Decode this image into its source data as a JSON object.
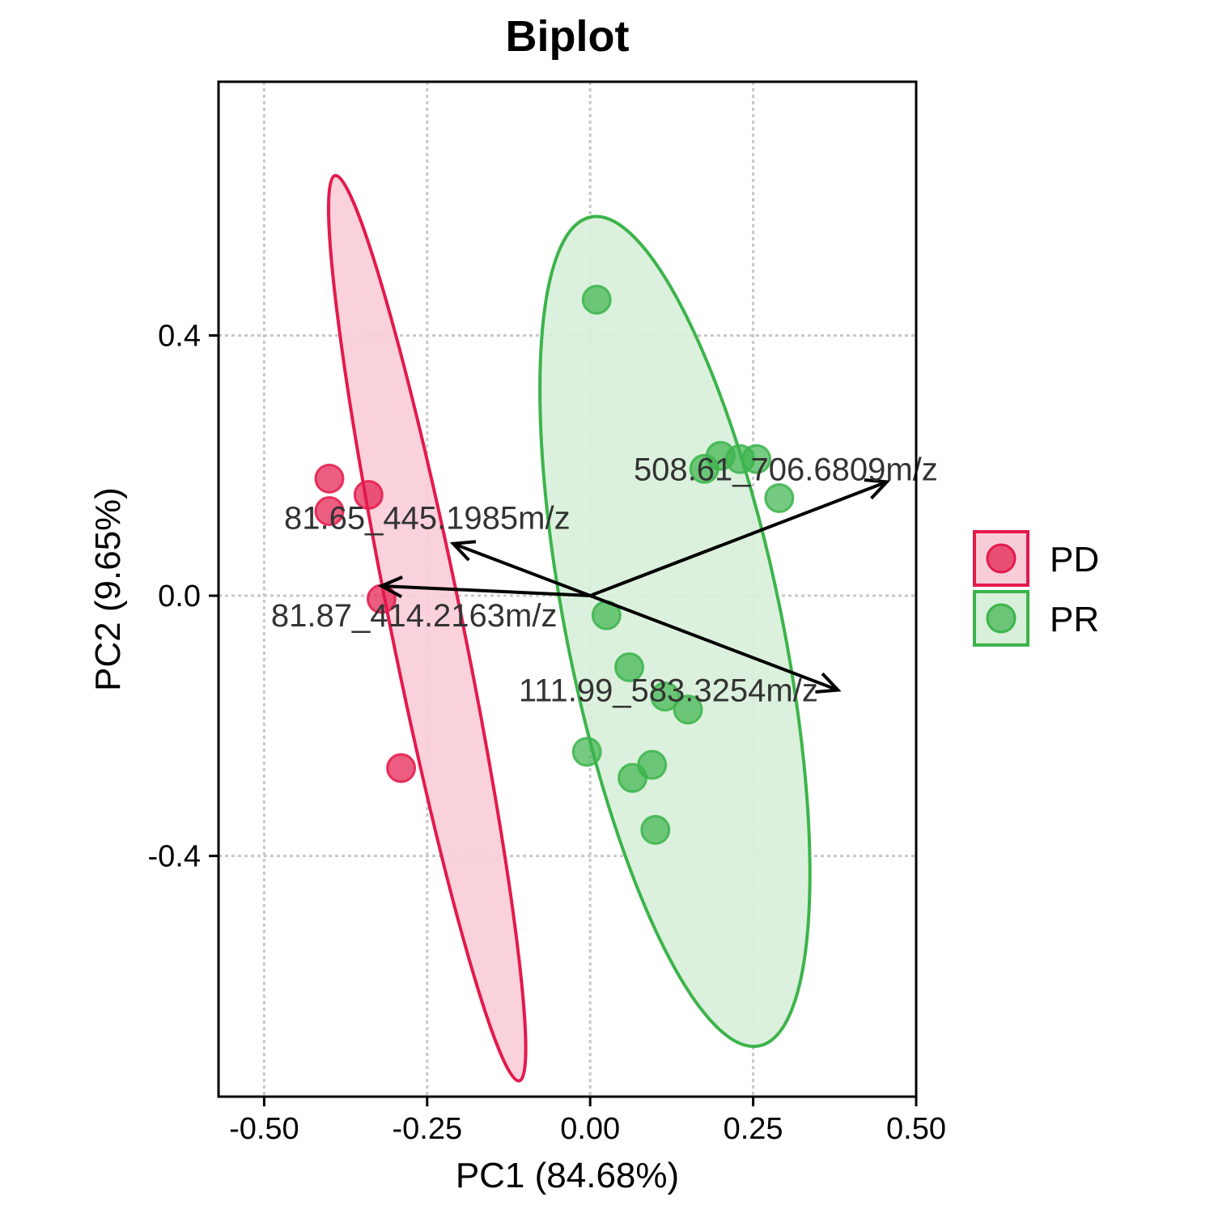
{
  "chart_data": {
    "type": "scatter",
    "title": "Biplot",
    "xlabel": "PC1 (84.68%)",
    "ylabel": "PC2 (9.65%)",
    "xlim": [
      -0.57,
      0.5
    ],
    "ylim": [
      -0.77,
      0.79
    ],
    "xticks": [
      -0.5,
      -0.25,
      0.0,
      0.25,
      0.5
    ],
    "xtick_labels": [
      "-0.50",
      "-0.25",
      "0.00",
      "0.25",
      "0.50"
    ],
    "yticks": [
      0.4,
      0.0,
      -0.4
    ],
    "ytick_labels": [
      "0.4",
      "0.0",
      "-0.4"
    ],
    "grid": true,
    "legend_position": "right",
    "series": [
      {
        "name": "PD",
        "color": "#e31a4c",
        "fill": "#f9cdd8",
        "points": [
          {
            "x": -0.4,
            "y": 0.18
          },
          {
            "x": -0.34,
            "y": 0.155
          },
          {
            "x": -0.4,
            "y": 0.13
          },
          {
            "x": -0.32,
            "y": -0.005
          },
          {
            "x": -0.29,
            "y": -0.265
          }
        ],
        "ellipse": {
          "cx": -0.25,
          "cy": -0.05,
          "rx": 0.055,
          "ry": 0.71,
          "angle_deg": -11.5
        }
      },
      {
        "name": "PR",
        "color": "#3cb44b",
        "fill": "#d8efd9",
        "points": [
          {
            "x": 0.01,
            "y": 0.455
          },
          {
            "x": 0.2,
            "y": 0.215
          },
          {
            "x": 0.23,
            "y": 0.21
          },
          {
            "x": 0.255,
            "y": 0.21
          },
          {
            "x": 0.175,
            "y": 0.195
          },
          {
            "x": 0.29,
            "y": 0.15
          },
          {
            "x": 0.025,
            "y": -0.03
          },
          {
            "x": 0.06,
            "y": -0.11
          },
          {
            "x": 0.115,
            "y": -0.155
          },
          {
            "x": 0.15,
            "y": -0.175
          },
          {
            "x": -0.005,
            "y": -0.24
          },
          {
            "x": 0.095,
            "y": -0.26
          },
          {
            "x": 0.065,
            "y": -0.28
          },
          {
            "x": 0.1,
            "y": -0.36
          }
        ],
        "ellipse": {
          "cx": 0.13,
          "cy": -0.055,
          "rx": 0.165,
          "ry": 0.65,
          "angle_deg": -11.5
        }
      }
    ],
    "loadings": [
      {
        "label": "508.61_706.6809m/z",
        "x": 0.455,
        "y": 0.175,
        "label_x": 0.3,
        "label_y": 0.195
      },
      {
        "label": "81.65_445.1985m/z",
        "x": -0.21,
        "y": 0.08,
        "label_x": -0.25,
        "label_y": 0.12
      },
      {
        "label": "81.87_414.2163m/z",
        "x": -0.32,
        "y": 0.015,
        "label_x": -0.27,
        "label_y": -0.03
      },
      {
        "label": "111.99_583.3254m/z",
        "x": 0.38,
        "y": -0.145,
        "label_x": 0.12,
        "label_y": -0.145
      }
    ]
  }
}
